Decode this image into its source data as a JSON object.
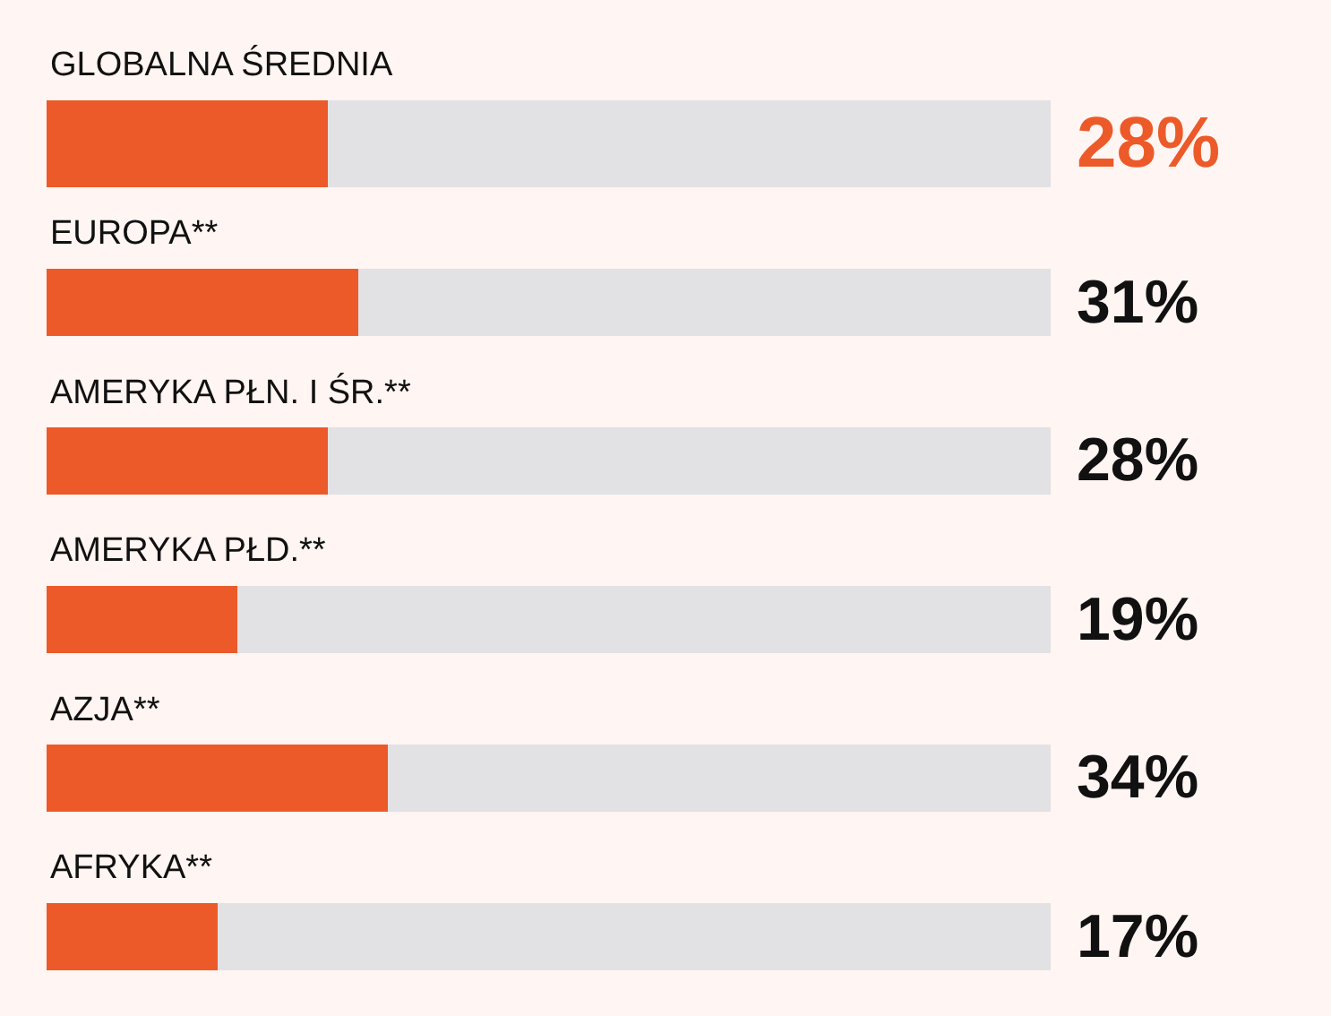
{
  "chart_data": {
    "type": "bar",
    "orientation": "horizontal",
    "stacked": true,
    "categories": [
      "GLOBALNA ŚREDNIA",
      "EUROPA**",
      "AMERYKA PŁN. I ŚR.**",
      "AMERYKA PŁD.**",
      "AZJA**",
      "AFRYKA**"
    ],
    "series": [
      {
        "color": "#ec5a29",
        "values": [
          28,
          31,
          28,
          19,
          34,
          17
        ],
        "value_labels": [
          "28%",
          "31%",
          "28%",
          "19%",
          "34%",
          "17%"
        ]
      },
      {
        "color": "#e2e1e3",
        "values": [
          72,
          69,
          72,
          81,
          66,
          83
        ]
      }
    ],
    "xlim": [
      0,
      100
    ]
  }
}
